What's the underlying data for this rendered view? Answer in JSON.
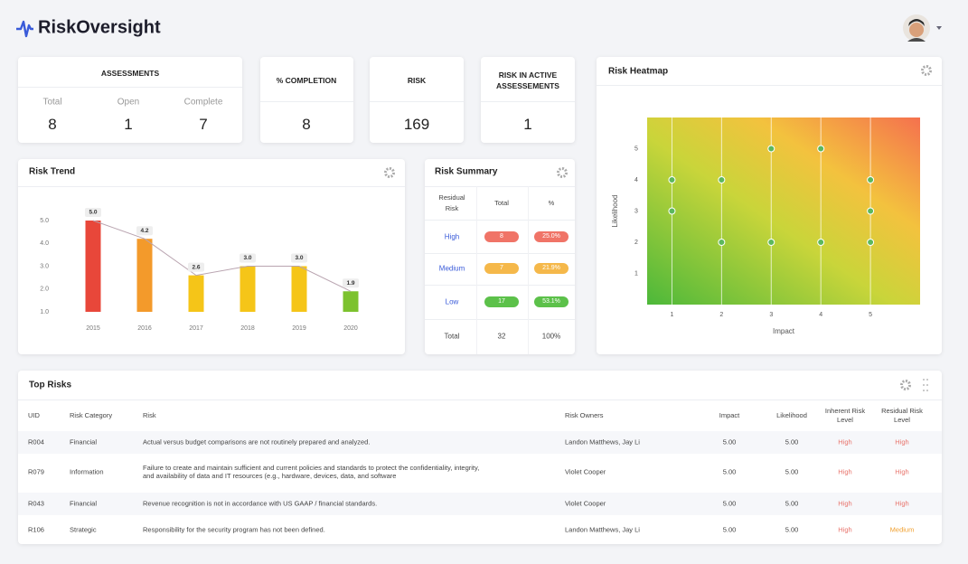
{
  "header": {
    "title": "RiskOversight"
  },
  "kpis": {
    "assessments": {
      "title": "ASSESSMENTS",
      "items": [
        {
          "label": "Total",
          "value": 8
        },
        {
          "label": "Open",
          "value": 1
        },
        {
          "label": "Complete",
          "value": 7
        }
      ]
    },
    "completion": {
      "title": "% COMPLETION",
      "value": 8
    },
    "risk": {
      "title": "RISK",
      "value": 169
    },
    "active": {
      "title": "RISK IN ACTIVE ASSESSEMENTS",
      "value": 1
    }
  },
  "chart_data": [
    {
      "type": "bar",
      "title": "Risk Trend",
      "categories": [
        "2015",
        "2016",
        "2017",
        "2018",
        "2019",
        "2020"
      ],
      "values": [
        5,
        4.2,
        2.6,
        3,
        3,
        1.9
      ],
      "value_labels": [
        "5.0",
        "4.2",
        "2.6",
        "3.0",
        "3.0",
        "1.9"
      ],
      "colors": [
        "#e8473a",
        "#f39a2b",
        "#f5c518",
        "#f5c518",
        "#f5c518",
        "#7cc22e"
      ],
      "line_color": "#b9a4b0",
      "ylim": [
        1,
        5
      ],
      "yticks": [
        {
          "value": 1,
          "label": "1.0"
        },
        {
          "value": 2,
          "label": "2.0"
        },
        {
          "value": 3,
          "label": "3.0"
        },
        {
          "value": 4,
          "label": "4.0"
        },
        {
          "value": 5,
          "label": "5.0"
        }
      ]
    },
    {
      "type": "scatter",
      "title": "Risk Heatmap",
      "x_label": "Impact",
      "y_label": "Likelihood",
      "x": [
        1,
        1,
        2,
        2,
        3,
        3,
        4,
        4,
        5,
        5,
        5
      ],
      "y": [
        4,
        3,
        4,
        2,
        5,
        2,
        5,
        2,
        4,
        3,
        2
      ],
      "color": "#5cb85c",
      "xlim": [
        0.5,
        6
      ],
      "ylim": [
        0,
        6
      ],
      "xticks": [
        1,
        2,
        3,
        4,
        5
      ],
      "yticks": [
        1,
        2,
        3,
        4,
        5
      ]
    }
  ],
  "risk_summary": {
    "title": "Risk Summary",
    "columns": [
      "Residual Risk",
      "Total",
      "%"
    ],
    "rows": [
      {
        "level": "High",
        "total": 8,
        "percent": "25.0%",
        "color": "#f07467"
      },
      {
        "level": "Medium",
        "total": 7,
        "percent": "21.9%",
        "color": "#f5b84a"
      },
      {
        "level": "Low",
        "total": 17,
        "percent": "53.1%",
        "color": "#5cc14a"
      }
    ],
    "total": {
      "label": "Total",
      "total": 32,
      "percent": "100%"
    }
  },
  "top_risks": {
    "title": "Top Risks",
    "columns": [
      "UID",
      "Risk Category",
      "Risk",
      "Risk Owners",
      "Impact",
      "Likelihood",
      "Inherent Risk Level",
      "Residual Risk Level"
    ],
    "level_colors": {
      "High": "#e8736b",
      "Medium": "#f0a030"
    },
    "rows": [
      [
        "R004",
        "Financial",
        "Actual versus budget comparisons are not routinely prepared and analyzed.",
        "Landon Matthews, Jay Li",
        "5.00",
        "5.00",
        "High",
        "High"
      ],
      [
        "R079",
        "Information",
        "Failure to create and maintain sufficient and current policies and standards to protect the confidentiality, integrity, and availability of data and IT resources (e.g., hardware, devices, data, and software",
        "Violet Cooper",
        "5.00",
        "5.00",
        "High",
        "High"
      ],
      [
        "R043",
        "Financial",
        "Revenue recognition is not in accordance with US GAAP / financial standards.",
        "Violet Cooper",
        "5.00",
        "5.00",
        "High",
        "High"
      ],
      [
        "R106",
        "Strategic",
        "Responsibility for the security program has not been defined.",
        "Landon Matthews, Jay Li",
        "5.00",
        "5.00",
        "High",
        "Medium"
      ]
    ]
  }
}
